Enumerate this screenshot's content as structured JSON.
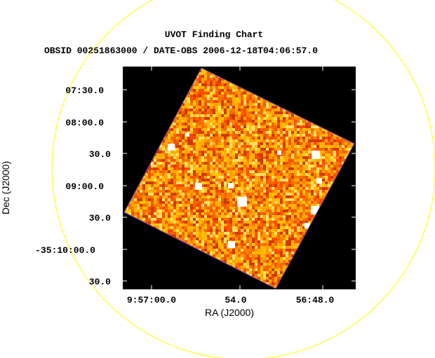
{
  "title": "UVOT Finding Chart",
  "subtitle": "OBSID 00251863000 / DATE-OBS 2006-12-18T04:06:57.0",
  "axes": {
    "x_label": "RA (J2000)",
    "y_label": "Dec (J2000)",
    "x_ticks": [
      "9:57:00.0",
      "54.0",
      "56:48.0"
    ],
    "y_ticks": [
      "07:30.0",
      "08:00.0",
      "30.0",
      "09:00.0",
      "30.0",
      "-35:10:00.0",
      "30.0"
    ]
  },
  "colors": {
    "background": "#000000",
    "circle": "#ffff00",
    "frame_fill": "#f28a0c",
    "noise_palette": [
      "#ff4b00",
      "#ff7a00",
      "#ffa200",
      "#ffc400",
      "#ffe066",
      "#f26800",
      "#d03a00",
      "#ffb200"
    ],
    "star": "#ffffff"
  },
  "image": {
    "colormap": "heat",
    "star_count": 11
  }
}
